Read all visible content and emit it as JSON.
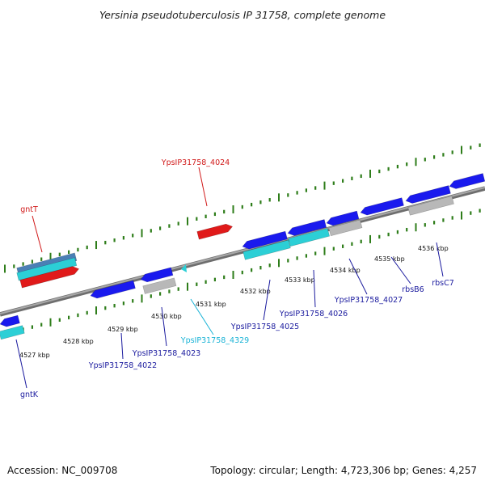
{
  "title": "Yersinia pseudotuberculosis IP 31758, complete genome",
  "footer": {
    "accession": "Accession: NC_009708",
    "topology": "Topology: circular; Length: 4,723,306 bp; Genes: 4,257"
  },
  "colors": {
    "backbone": "#8c8c8c",
    "tick": "#2e7d1a",
    "forward_gene": "#e01a1a",
    "reverse_gene": "#1a1aee",
    "rna_or_pseudo": "#2ccfd6",
    "other_feature": "#b8b8b8",
    "steel_feature": "#4a7fb5",
    "label_red": "#d11a1a",
    "label_blue": "#1a1a9e",
    "label_cyan": "#1ab3d6"
  },
  "kbp_labels": [
    "4527 kbp",
    "4528 kbp",
    "4529 kbp",
    "4530 kbp",
    "4531 kbp",
    "4532 kbp",
    "4533 kbp",
    "4534 kbp",
    "4535 kbp",
    "4536 kbp"
  ],
  "gene_labels": [
    {
      "text": "YpsIP31758_4024",
      "color": "label_red"
    },
    {
      "text": "gntT",
      "color": "label_red"
    },
    {
      "text": "gntK",
      "color": "label_blue"
    },
    {
      "text": "YpsIP31758_4022",
      "color": "label_blue"
    },
    {
      "text": "YpsIP31758_4023",
      "color": "label_blue"
    },
    {
      "text": "YpsIP31758_4329",
      "color": "label_cyan"
    },
    {
      "text": "YpsIP31758_4025",
      "color": "label_blue"
    },
    {
      "text": "YpsIP31758_4026",
      "color": "label_blue"
    },
    {
      "text": "YpsIP31758_4027",
      "color": "label_blue"
    },
    {
      "text": "rbsB6",
      "color": "label_blue"
    },
    {
      "text": "rbsC7",
      "color": "label_blue"
    }
  ]
}
